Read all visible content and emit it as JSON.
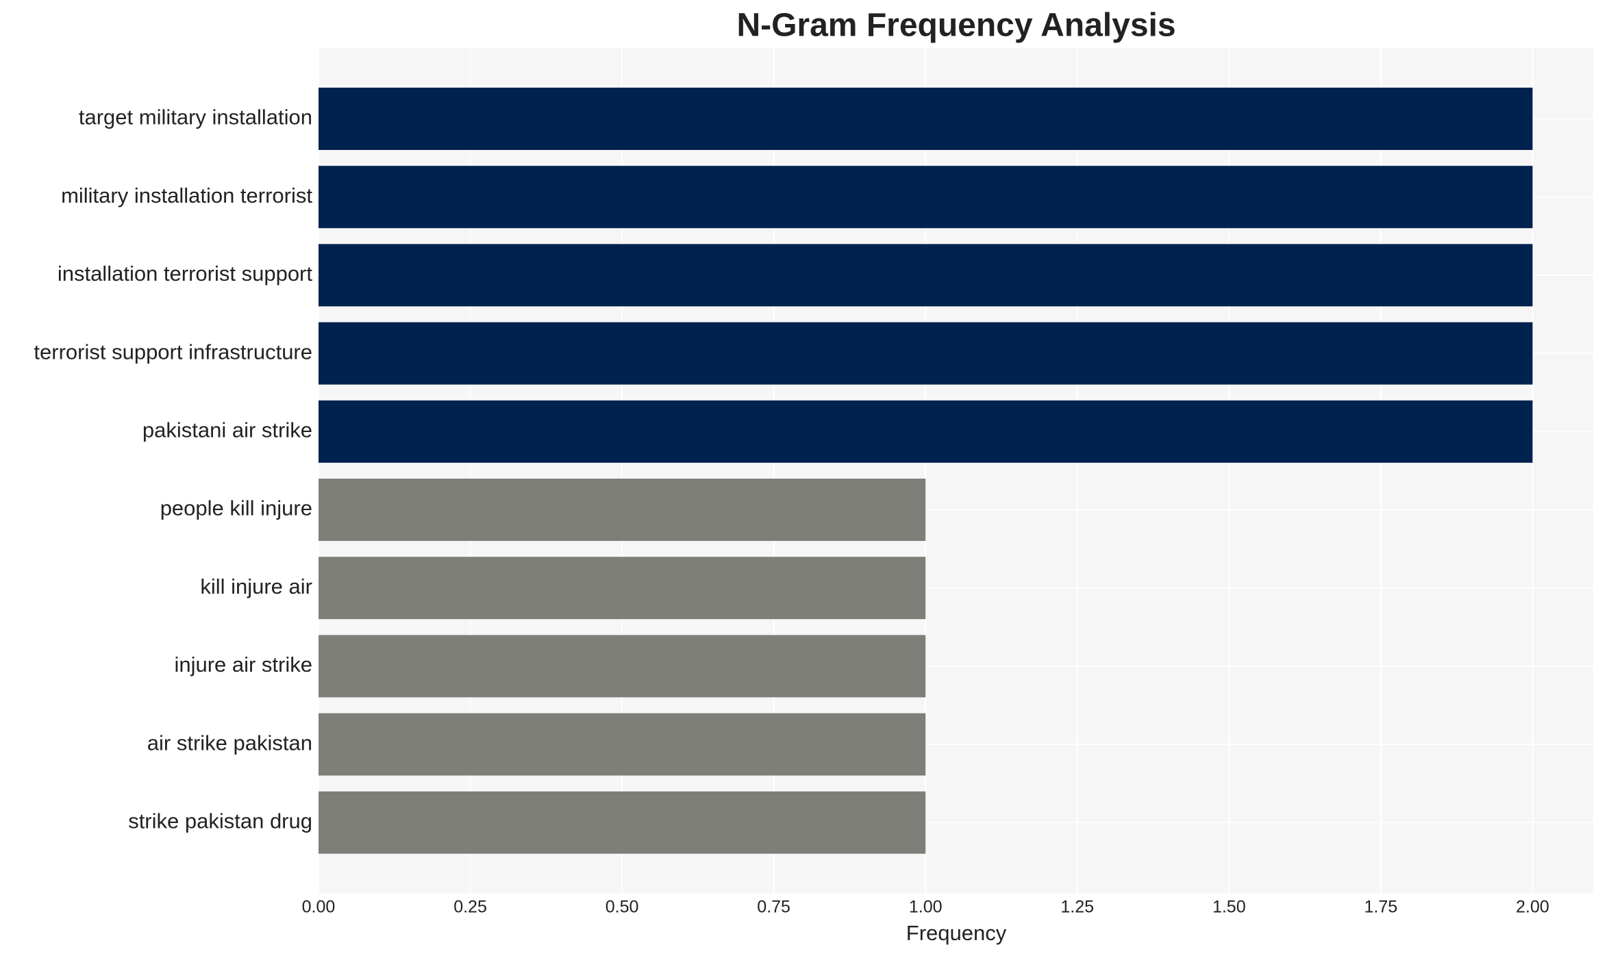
{
  "chart_data": {
    "type": "barh",
    "title": "N-Gram Frequency Analysis",
    "x_label": "Frequency",
    "categories": [
      "target military installation",
      "military installation terrorist",
      "installation terrorist support",
      "terrorist support infrastructure",
      "pakistani air strike",
      "people kill injure",
      "kill injure air",
      "injure air strike",
      "air strike pakistan",
      "strike pakistan drug"
    ],
    "values": [
      2,
      2,
      2,
      2,
      2,
      1,
      1,
      1,
      1,
      1
    ],
    "colors": [
      "#00224e",
      "#00224e",
      "#00224e",
      "#00224e",
      "#00224e",
      "#7f7f7a",
      "#7f7f7a",
      "#7f7f7a",
      "#7f7f7a",
      "#7f7f7a"
    ],
    "xlim": [
      0,
      2.1
    ],
    "xticks": [
      {
        "value": 0,
        "label": "0.00"
      },
      {
        "value": 0.25,
        "label": "0.25"
      },
      {
        "value": 0.5,
        "label": "0.50"
      },
      {
        "value": 0.75,
        "label": "0.75"
      },
      {
        "value": 1,
        "label": "1.00"
      },
      {
        "value": 1.25,
        "label": "1.25"
      },
      {
        "value": 1.5,
        "label": "1.50"
      },
      {
        "value": 1.75,
        "label": "1.75"
      },
      {
        "value": 2,
        "label": "2.00"
      }
    ],
    "grid": true
  }
}
